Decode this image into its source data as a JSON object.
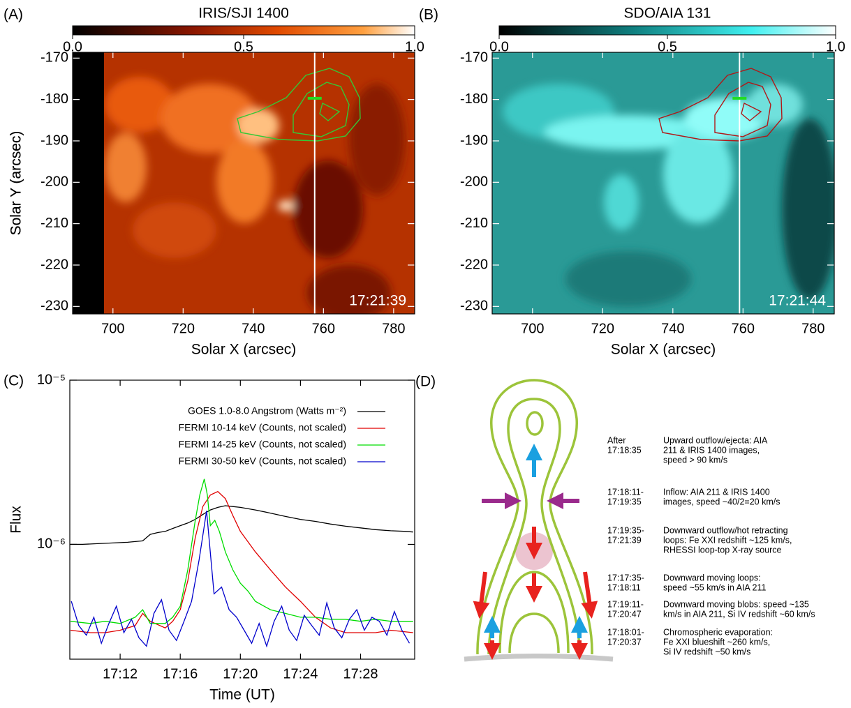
{
  "chart_data": [
    {
      "type": "image",
      "panel_label": "(A)",
      "title": "IRIS/SJI 1400",
      "colorbar": {
        "lim": [
          0,
          1
        ],
        "ticks": [
          {
            "value": 0,
            "label": "0.0"
          },
          {
            "value": 0.5,
            "label": "0.5"
          },
          {
            "value": 1,
            "label": "1.0"
          }
        ]
      },
      "xlabel": "Solar X (arcsec)",
      "ylabel": "Solar Y (arcsec)",
      "xlim": [
        688.5,
        786
      ],
      "ylim": [
        -231.8,
        -168.6
      ],
      "xticks": [
        700,
        720,
        740,
        760,
        780
      ],
      "yticks": [
        -170,
        -180,
        -190,
        -200,
        -210,
        -220,
        -230
      ],
      "timestamp": "17:21:39",
      "slit_x": 757.5,
      "source": {
        "x": 757.5,
        "y": -179.7,
        "color": "#22dd22"
      }
    },
    {
      "type": "image",
      "panel_label": "(B)",
      "title": "SDO/AIA 131",
      "colorbar": {
        "lim": [
          0,
          1
        ],
        "ticks": [
          {
            "value": 0,
            "label": "0.0"
          },
          {
            "value": 0.5,
            "label": "0.5"
          },
          {
            "value": 1,
            "label": "1.0"
          }
        ]
      },
      "xlabel": "Solar X (arcsec)",
      "ylabel": "Solar Y (arcsec)",
      "xlim": [
        688.5,
        786
      ],
      "ylim": [
        -231.8,
        -168.6
      ],
      "xticks": [
        700,
        720,
        740,
        760,
        780
      ],
      "yticks": [
        -170,
        -180,
        -190,
        -200,
        -210,
        -220,
        -230
      ],
      "timestamp": "17:21:44",
      "slit_x": 759,
      "source": {
        "x": 759,
        "y": -179.7,
        "color": "#22dd22"
      }
    },
    {
      "type": "line",
      "panel_label": "(C)",
      "xlabel": "Time (UT)",
      "ylabel": "Flux",
      "log_y": true,
      "legend": "upper right",
      "xlim": [
        8.65,
        31.6
      ],
      "ylim": [
        2e-07,
        1e-05
      ],
      "xticks": [
        {
          "value": 12,
          "label": "17:12"
        },
        {
          "value": 16,
          "label": "17:16"
        },
        {
          "value": 20,
          "label": "17:20"
        },
        {
          "value": 24,
          "label": "17:24"
        },
        {
          "value": 28,
          "label": "17:28"
        }
      ],
      "yticks": [
        {
          "value": 1e-05,
          "label": "10⁻⁵"
        },
        {
          "value": 1e-06,
          "label": "10⁻⁶"
        }
      ],
      "series": [
        {
          "name": "GOES 1.0-8.0 Angstrom (Watts m⁻²)",
          "color": "#000000",
          "x": [
            8.7,
            9.5,
            10.5,
            11.5,
            12.5,
            13.5,
            14,
            14.5,
            15,
            15.5,
            16,
            16.5,
            17,
            17.5,
            18,
            18.5,
            19,
            19.5,
            20,
            21,
            22,
            23,
            24,
            25,
            26,
            27,
            28,
            29,
            30,
            31,
            31.5
          ],
          "values": [
            1e-06,
            1e-06,
            1.01e-06,
            1.02e-06,
            1.03e-06,
            1.05e-06,
            1.15e-06,
            1.18e-06,
            1.2e-06,
            1.25e-06,
            1.3e-06,
            1.35e-06,
            1.42e-06,
            1.52e-06,
            1.62e-06,
            1.68e-06,
            1.72e-06,
            1.7e-06,
            1.68e-06,
            1.62e-06,
            1.55e-06,
            1.48e-06,
            1.42e-06,
            1.38e-06,
            1.33e-06,
            1.29e-06,
            1.26e-06,
            1.23e-06,
            1.21e-06,
            1.2e-06,
            1.19e-06
          ]
        },
        {
          "name": "FERMI 10-14 keV (Counts, not scaled)",
          "color": "#e00000",
          "x": [
            8.7,
            10,
            11,
            12,
            13,
            13.5,
            14,
            15,
            15.5,
            16,
            16.5,
            17,
            17.5,
            18,
            18.5,
            19,
            19.5,
            20,
            21,
            22,
            23,
            24,
            25,
            26,
            27,
            28,
            29,
            30,
            31.5
          ],
          "values": [
            3e-07,
            2.9e-07,
            2.9e-07,
            3e-07,
            3.2e-07,
            3.8e-07,
            3.4e-07,
            3.1e-07,
            3.4e-07,
            4e-07,
            6e-07,
            1.1e-06,
            1.7e-06,
            2e-06,
            2.1e-06,
            1.9e-06,
            1.5e-06,
            1.2e-06,
            9e-07,
            7e-07,
            5.5e-07,
            4.5e-07,
            3.6e-07,
            3.1e-07,
            2.9e-07,
            2.9e-07,
            2.9e-07,
            3e-07,
            2.9e-07
          ]
        },
        {
          "name": "FERMI 14-25 keV (Counts, not scaled)",
          "color": "#00dd00",
          "x": [
            8.7,
            10,
            11,
            12,
            13,
            13.5,
            14,
            15,
            15.5,
            16,
            16.5,
            17,
            17.3,
            17.6,
            17.8,
            18,
            18.3,
            18.6,
            19,
            19.5,
            20,
            20.5,
            21,
            22,
            23,
            24,
            25,
            26,
            27,
            28,
            29,
            30,
            31.5
          ],
          "values": [
            3.4e-07,
            3.3e-07,
            3.4e-07,
            3.3e-07,
            3.6e-07,
            4e-07,
            3.3e-07,
            3.3e-07,
            3.6e-07,
            4.2e-07,
            7e-07,
            1.4e-06,
            2e-06,
            2.5e-06,
            2e-06,
            1.3e-06,
            1.4e-06,
            1.2e-06,
            9e-07,
            7e-07,
            5.8e-07,
            5.2e-07,
            4.5e-07,
            4e-07,
            3.8e-07,
            3.6e-07,
            3.6e-07,
            3.5e-07,
            3.5e-07,
            3.4e-07,
            3.5e-07,
            3.4e-07,
            3.4e-07
          ]
        },
        {
          "name": "FERMI 30-50 keV (Counts, not scaled)",
          "color": "#0000cc",
          "x": [
            8.75,
            9.25,
            9.75,
            10.25,
            10.75,
            11.25,
            11.75,
            12.25,
            12.75,
            13.25,
            13.75,
            14.25,
            14.75,
            15.25,
            15.75,
            16.25,
            16.75,
            17.25,
            17.75,
            18.25,
            18.75,
            19.25,
            19.75,
            20.25,
            20.75,
            21.25,
            21.75,
            22.25,
            22.75,
            23.25,
            23.75,
            24.25,
            24.75,
            25.25,
            25.75,
            26.25,
            26.75,
            27.25,
            27.75,
            28.25,
            28.75,
            29.25,
            29.75,
            30.25,
            30.75,
            31.25
          ],
          "values": [
            4.5e-07,
            3.2e-07,
            2.8e-07,
            3.6e-07,
            2.5e-07,
            3.3e-07,
            4.2e-07,
            2.9e-07,
            3.5e-07,
            2.7e-07,
            2.4e-07,
            3.8e-07,
            4.6e-07,
            3e-07,
            2.6e-07,
            3.4e-07,
            4.5e-07,
            8e-07,
            1.6e-06,
            5e-07,
            5.5e-07,
            4e-07,
            3.6e-07,
            3e-07,
            2.5e-07,
            3.3e-07,
            2.4e-07,
            3.4e-07,
            4.2e-07,
            3e-07,
            2.6e-07,
            3.7e-07,
            3.2e-07,
            2.8e-07,
            4.4e-07,
            3.1e-07,
            2.7e-07,
            3.5e-07,
            4e-07,
            3e-07,
            3.6e-07,
            3.4e-07,
            2.8e-07,
            3.9e-07,
            3e-07,
            2.5e-07
          ]
        }
      ]
    }
  ],
  "diagram": {
    "label": "(D)",
    "rows": [
      {
        "time": [
          "After",
          "17:18:35"
        ],
        "text": [
          "Upward outflow/ejecta: AIA",
          "211 & IRIS 1400 images,",
          "speed > 90 km/s"
        ]
      },
      {
        "time": [
          "17:18:11-",
          "17:19:35"
        ],
        "text": [
          "Inflow: AIA 211 & IRIS 1400",
          "images, speed ~40/2=20 km/s"
        ]
      },
      {
        "time": [
          "17:19:35-",
          "17:21:39"
        ],
        "text": [
          "Downward outflow/hot retracting",
          "loops: Fe XXI redshift ~125 km/s,",
          "RHESSI loop-top X-ray source"
        ]
      },
      {
        "time": [
          "17:17:35-",
          "17:18:11"
        ],
        "text": [
          "Downward moving loops:",
          "speed ~55 km/s in AIA 211"
        ]
      },
      {
        "time": [
          "17:19:11-",
          "17:20:47"
        ],
        "text": [
          "Downward moving blobs: speed ~135",
          "km/s in AIA 211, Si IV redshift ~60 km/s"
        ]
      },
      {
        "time": [
          "17:18:01-",
          "17:20:37"
        ],
        "text": [
          "Chromospheric evaporation:",
          "Fe XXI blueshift ~260 km/s,",
          "Si IV redshift ~50 km/s"
        ]
      }
    ]
  }
}
